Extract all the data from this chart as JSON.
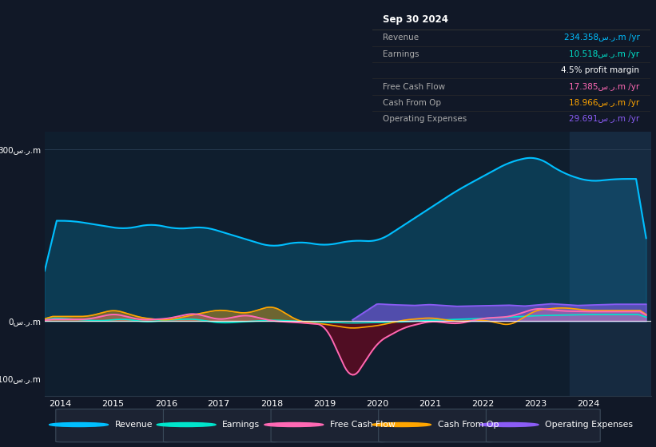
{
  "bg_color": "#111827",
  "chart_bg": "#0f1e2e",
  "revenue_color": "#00bfff",
  "earnings_color": "#00e5cc",
  "fcf_color": "#ff69b4",
  "cfo_color": "#ffa500",
  "opex_color": "#8b5cf6",
  "highlight_color": "#1a3a5c",
  "title": "Sep 30 2024",
  "table_rows": [
    {
      "label": "Revenue",
      "value": "234.358س.ر.m /yr",
      "label_color": "#aaaaaa",
      "value_color": "#00bfff"
    },
    {
      "label": "Earnings",
      "value": "10.518س.ر.m /yr",
      "label_color": "#aaaaaa",
      "value_color": "#00e5cc"
    },
    {
      "label": "",
      "value": "4.5% profit margin",
      "label_color": "#aaaaaa",
      "value_color": "#ffffff"
    },
    {
      "label": "Free Cash Flow",
      "value": "17.385س.ر.m /yr",
      "label_color": "#aaaaaa",
      "value_color": "#ff69b4"
    },
    {
      "label": "Cash From Op",
      "value": "18.966س.ر.m /yr",
      "label_color": "#aaaaaa",
      "value_color": "#ffa500"
    },
    {
      "label": "Operating Expenses",
      "value": "29.691س.ر.m /yr",
      "label_color": "#aaaaaa",
      "value_color": "#8b5cf6"
    }
  ],
  "legend_items": [
    {
      "label": "Revenue",
      "color": "#00bfff"
    },
    {
      "label": "Earnings",
      "color": "#00e5cc"
    },
    {
      "label": "Free Cash Flow",
      "color": "#ff69b4"
    },
    {
      "label": "Cash From Op",
      "color": "#ffa500"
    },
    {
      "label": "Operating Expenses",
      "color": "#8b5cf6"
    }
  ],
  "xlim": [
    2013.7,
    2025.2
  ],
  "ylim": [
    -130,
    330
  ],
  "yticks": [
    -100,
    0,
    300
  ],
  "ytick_labels": [
    "-100س.ر.m",
    "0س.ر.m",
    "300س.ر.m"
  ],
  "xticks": [
    2014,
    2015,
    2016,
    2017,
    2018,
    2019,
    2020,
    2021,
    2022,
    2023,
    2024
  ]
}
